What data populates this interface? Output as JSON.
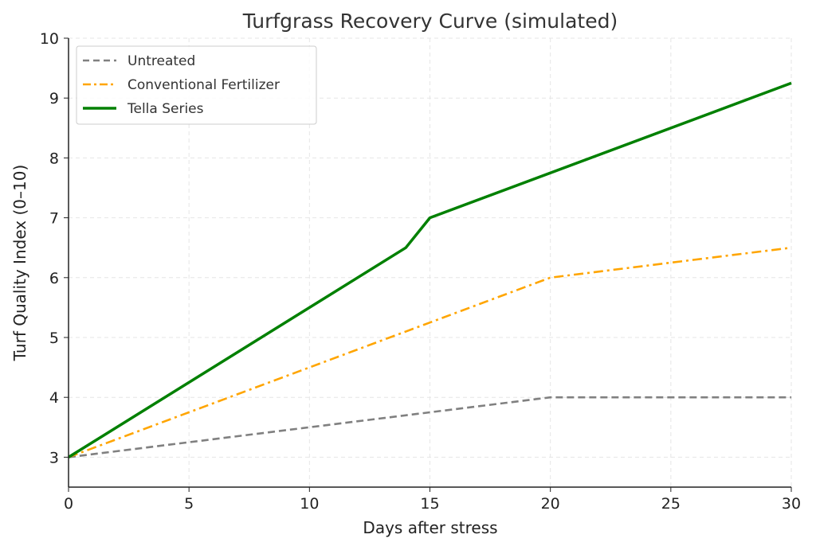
{
  "chart_data": {
    "type": "line",
    "title": "Turfgrass Recovery Curve (simulated)",
    "xlabel": "Days after stress",
    "ylabel": "Turf Quality Index (0–10)",
    "xlim": [
      0,
      30
    ],
    "ylim": [
      2.5,
      10
    ],
    "xticks": [
      0,
      5,
      10,
      15,
      20,
      25,
      30
    ],
    "yticks": [
      3,
      4,
      5,
      6,
      7,
      8,
      9,
      10
    ],
    "grid": true,
    "legend_position": "top-left",
    "series": [
      {
        "name": "Untreated",
        "color": "#808080",
        "style": "dashed",
        "x": [
          0,
          20,
          30
        ],
        "y": [
          3,
          4,
          4
        ]
      },
      {
        "name": "Conventional Fertilizer",
        "color": "#FFA500",
        "style": "dashdot",
        "x": [
          0,
          20,
          30
        ],
        "y": [
          3,
          6,
          6.5
        ]
      },
      {
        "name": "Tella Series",
        "color": "#008000",
        "style": "solid",
        "x": [
          0,
          14,
          15,
          30
        ],
        "y": [
          3,
          6.5,
          7,
          9.25
        ]
      }
    ]
  }
}
